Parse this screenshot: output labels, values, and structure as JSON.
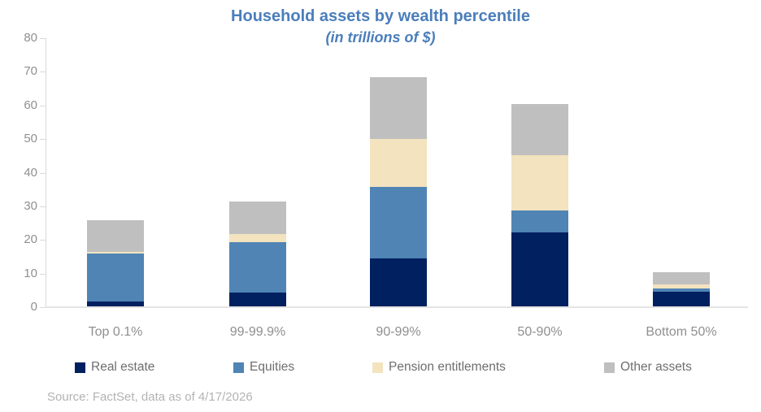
{
  "chart_data": {
    "type": "bar",
    "stacked": true,
    "title": "Household assets by wealth percentile",
    "subtitle": "(in trillions of $)",
    "categories": [
      "Top 0.1%",
      "99-99.9%",
      "90-99%",
      "50-90%",
      "Bottom 50%"
    ],
    "series": [
      {
        "name": "Real estate",
        "color": "#002060",
        "values": [
          1.8,
          4.3,
          14.5,
          22.2,
          4.6
        ]
      },
      {
        "name": "Equities",
        "color": "#4F84B5",
        "values": [
          14.1,
          15.0,
          21.2,
          6.5,
          0.9
        ]
      },
      {
        "name": "Pension entitlements",
        "color": "#F3E3BE",
        "values": [
          0.6,
          2.5,
          14.3,
          16.5,
          1.2
        ]
      },
      {
        "name": "Other assets",
        "color": "#BFBFBF",
        "values": [
          9.3,
          9.5,
          18.4,
          15.2,
          3.7
        ]
      }
    ],
    "ylim": [
      0,
      80
    ],
    "yticks": [
      0,
      10,
      20,
      30,
      40,
      50,
      60,
      70,
      80
    ],
    "grid": false,
    "legend_position": "bottom"
  },
  "source_note": "Source: FactSet, data as of 4/17/2026",
  "colors": {
    "title_text": "#4A7EBB",
    "axis_text": "#8F8F8F",
    "legend_text": "#6E6E6E",
    "source_text": "#B3B3B3",
    "axis_line": "#D9D9D9"
  }
}
